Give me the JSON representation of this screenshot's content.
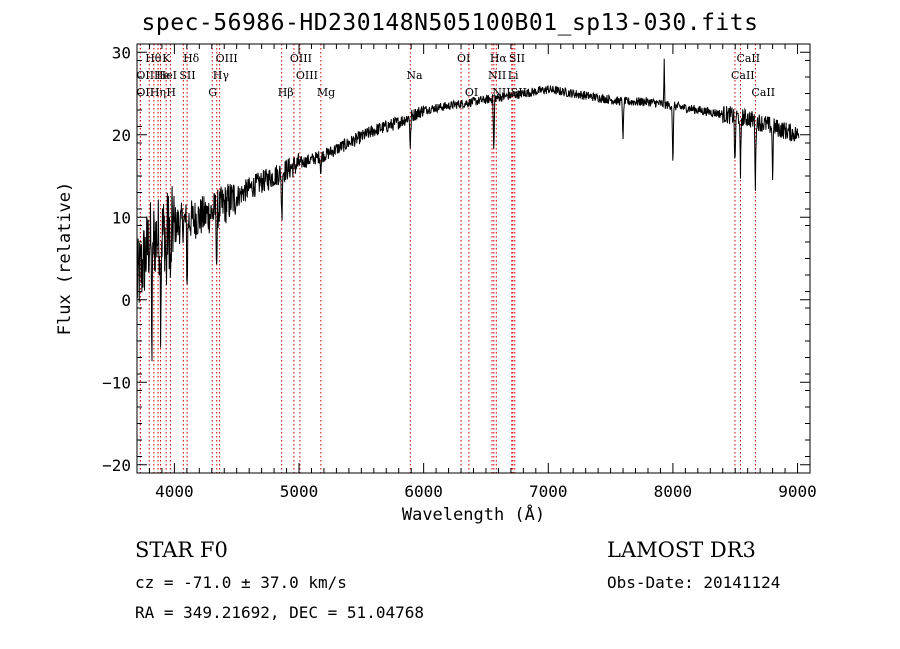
{
  "title": "spec-56986-HD230148N505100B01_sp13-030.fits",
  "info": {
    "star_class": "STAR    F0",
    "survey": "LAMOST DR3",
    "cz": "cz = -71.0 ± 37.0 km/s",
    "obs_date": "Obs-Date: 20141124",
    "radec": "RA = 349.21692, DEC =  51.04768"
  },
  "chart_data": {
    "type": "line",
    "title": "spec-56986-HD230148N505100B01_sp13-030.fits",
    "xlabel": "Wavelength (Å)",
    "ylabel": "Flux (relative)",
    "xlim": [
      3700,
      9100
    ],
    "ylim": [
      -21,
      31
    ],
    "xticks": [
      4000,
      5000,
      6000,
      7000,
      8000,
      9000
    ],
    "yticks": [
      -20,
      -10,
      0,
      10,
      20,
      30
    ],
    "continuum": [
      [
        3700,
        2
      ],
      [
        3800,
        7
      ],
      [
        3900,
        8
      ],
      [
        4000,
        9
      ],
      [
        4100,
        9.5
      ],
      [
        4200,
        10
      ],
      [
        4300,
        10.5
      ],
      [
        4400,
        11.5
      ],
      [
        4500,
        12.5
      ],
      [
        4600,
        13.5
      ],
      [
        4800,
        15
      ],
      [
        5000,
        16.5
      ],
      [
        5200,
        17.5
      ],
      [
        5400,
        19
      ],
      [
        5600,
        20.5
      ],
      [
        5800,
        21.5
      ],
      [
        6000,
        23
      ],
      [
        6200,
        23.5
      ],
      [
        6400,
        24
      ],
      [
        6600,
        24.5
      ],
      [
        7000,
        25.5
      ],
      [
        7200,
        25
      ],
      [
        7400,
        24.5
      ],
      [
        7600,
        24
      ],
      [
        7800,
        24
      ],
      [
        8000,
        23.5
      ],
      [
        8200,
        23
      ],
      [
        8400,
        22.5
      ],
      [
        8600,
        22
      ],
      [
        8800,
        21
      ],
      [
        9000,
        20
      ]
    ],
    "absorption_features": [
      {
        "x": 3820,
        "depth": 14
      },
      {
        "x": 3890,
        "depth": 10
      },
      {
        "x": 3935,
        "depth": 6
      },
      {
        "x": 3970,
        "depth": 8
      },
      {
        "x": 4102,
        "depth": 8
      },
      {
        "x": 4340,
        "depth": 7
      },
      {
        "x": 4862,
        "depth": 6
      },
      {
        "x": 5175,
        "depth": 2
      },
      {
        "x": 5893,
        "depth": 4
      },
      {
        "x": 6563,
        "depth": 7
      },
      {
        "x": 7600,
        "depth": 5
      },
      {
        "x": 8000,
        "depth": 8
      },
      {
        "x": 8498,
        "depth": 7
      },
      {
        "x": 8542,
        "depth": 8
      },
      {
        "x": 8662,
        "depth": 8
      },
      {
        "x": 8800,
        "depth": 6
      }
    ],
    "emission_features": [
      {
        "x": 7930,
        "height": 5
      }
    ],
    "spectral_lines": [
      {
        "x": 3727,
        "label": "OII",
        "row": 2
      },
      {
        "x": 3727,
        "label": "OII",
        "row": 3
      },
      {
        "x": 3798,
        "label": "Hθ",
        "row": 1
      },
      {
        "x": 3835,
        "label": "Hη",
        "row": 3
      },
      {
        "x": 3869,
        "label": "He",
        "row": 2
      },
      {
        "x": 3889,
        "label": "HeI",
        "row": 2
      },
      {
        "x": 3934,
        "label": "K",
        "row": 1
      },
      {
        "x": 3968,
        "label": "H",
        "row": 3
      },
      {
        "x": 4072,
        "label": "SII",
        "row": 2
      },
      {
        "x": 4102,
        "label": "Hδ",
        "row": 1
      },
      {
        "x": 4304,
        "label": "G",
        "row": 3
      },
      {
        "x": 4340,
        "label": "Hγ",
        "row": 2
      },
      {
        "x": 4363,
        "label": "OIII",
        "row": 1
      },
      {
        "x": 4861,
        "label": "Hβ",
        "row": 3
      },
      {
        "x": 4959,
        "label": "OIII",
        "row": 1
      },
      {
        "x": 5007,
        "label": "OIII",
        "row": 2
      },
      {
        "x": 5175,
        "label": "Mg",
        "row": 3
      },
      {
        "x": 5893,
        "label": "Na",
        "row": 2
      },
      {
        "x": 6300,
        "label": "OI",
        "row": 1
      },
      {
        "x": 6363,
        "label": "OI",
        "row": 3
      },
      {
        "x": 6548,
        "label": "NII",
        "row": 2
      },
      {
        "x": 6563,
        "label": "Hα",
        "row": 1
      },
      {
        "x": 6583,
        "label": "NII",
        "row": 3
      },
      {
        "x": 6707,
        "label": "Li",
        "row": 2
      },
      {
        "x": 6716,
        "label": "SII",
        "row": 1
      },
      {
        "x": 6731,
        "label": "SII",
        "row": 3
      },
      {
        "x": 8498,
        "label": "CaII",
        "row": 2
      },
      {
        "x": 8542,
        "label": "CaII",
        "row": 1
      },
      {
        "x": 8662,
        "label": "CaII",
        "row": 3
      }
    ]
  }
}
